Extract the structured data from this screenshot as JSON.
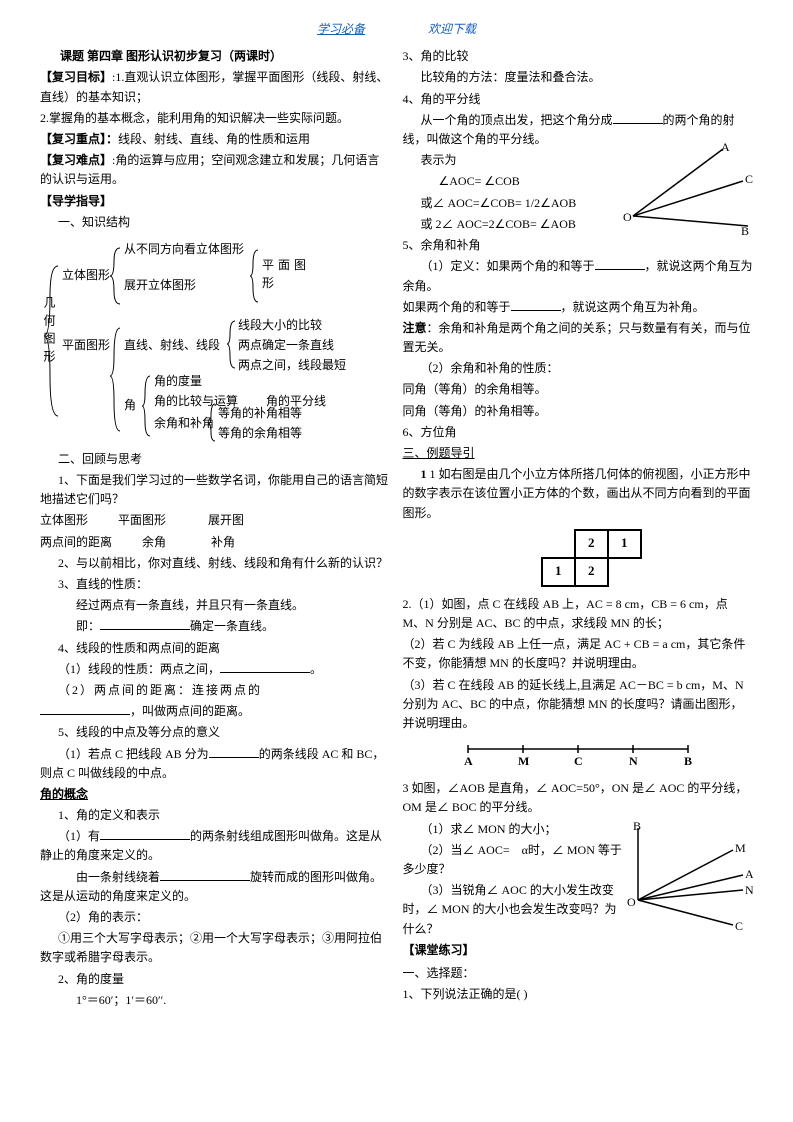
{
  "header": {
    "left": "学习必备",
    "right": "欢迎下载"
  },
  "left": {
    "title": "课题  第四章   图形认识初步复习（两课时）",
    "obj_label": "【复习目标】",
    "obj_text1": ":1.直观认识立体图形，掌握平面图形（线段、射线、直线）的基本知识；",
    "obj_text2": "2.掌握角的基本概念，能利用角的知识解决一些实际问题。",
    "keypoint_label": "【复习重点】：",
    "keypoint_text": "线段、射线、直线、角的性质和运用",
    "diff_label": "【复习难点】",
    "diff_text": ":角的运算与应用；空间观念建立和发展；几何语言的认识与运用。",
    "guide_label": "【导学指导】",
    "section1": "一、知识结构",
    "tree": {
      "root": "几何图形",
      "solid": "立体图形",
      "solid_a": "从不同方向看立体图形",
      "solid_b": "展开立体图形",
      "plane_right": "平面图形",
      "plane": "平面图形",
      "line": "直线、射线、线段",
      "line_a": "线段大小的比较",
      "line_b": "两点确定一条直线",
      "line_c": "两点之间，线段最短",
      "angle": "角",
      "angle_a": "角的度量",
      "angle_b": "角的比较与运算",
      "angle_b_sub": "角的平分线",
      "angle_c": "余角和补角",
      "angle_c_sub1": "等角的补角相等",
      "angle_c_sub2": "等角的余角相等"
    },
    "section2": "二、回顾与思考",
    "q1": "1、下面是我们学习过的一些数学名词，你能用自己的语言简短地描述它们吗？",
    "terms_a": "立体图形          平面图形              展开图",
    "terms_b": "两点间的距离          余角               补角",
    "q2": "2、与以前相比，你对直线、射线、线段和角有什么新的认识？",
    "q3": "3、直线的性质：",
    "q3a": "经过两点有一条直线，并且只有一条直线。",
    "q3b_a": "即：",
    "q3b_b": "确定一条直线。",
    "q4": "4、线段的性质和两点间的距离",
    "q4a": "（1）线段的性质：两点之间，",
    "q4a_end": "。",
    "q4b": "（2）两点间的距离：连接两点的",
    "q4b_end": "，叫做两点间的距离。",
    "q5": "5、线段的中点及等分点的意义",
    "q5a_a": "（1）若点 C 把线段 AB 分为",
    "q5a_b": "的两条线段 AC 和 BC，则点 C 叫做线段的中点。",
    "angle_concept": "角的概念",
    "a1": "1、角的定义和表示",
    "a1a_a": "（1）有",
    "a1a_b": "的两条射线组成图形叫做角。这是从静止的角度来定义的。",
    "a1b_a": "由一条射线绕着",
    "a1b_b": "旋转而成的图形叫做角。这是从运动的角度来定义的。",
    "a2": "（2）角的表示：",
    "a2a": "①用三个大写字母表示；②用一个大写字母表示；③用阿拉伯数字或希腊字母表示。",
    "a3": "2、角的度量",
    "a3a": "1°＝60′；1′＝60′′."
  },
  "right": {
    "r3": "3、角的比较",
    "r3a": "比较角的方法：度量法和叠合法。",
    "r4": "4、角的平分线",
    "r4a_a": "从一个角的顶点出发，把这个角分成",
    "r4a_b": "的两个角的射线，叫做这个角的平分线。",
    "r4b": "表示为",
    "r4c": "∠AOC= ∠COB",
    "r4d": "或∠ AOC=∠COB= 1/2∠AOB",
    "r4e": "或 2∠ AOC=2∠COB= ∠AOB",
    "labels": {
      "A": "A",
      "B": "B",
      "C": "C",
      "O": "O"
    },
    "r5": "5、余角和补角",
    "r5a_a": "（1）定义：如果两个角的和等于",
    "r5a_b": "，就说这两个角互为余角。",
    "r5b_a": "如果两个角的和等于",
    "r5b_b": "，就说这两个角互为补角。",
    "note_label": "注意",
    "note": "：余角和补角是两个角之间的关系；只与数量有有关，而与位置无关。",
    "r5c": "（2）余角和补角的性质：",
    "r5d": "同角（等角）的余角相等。",
    "r5e": "同角（等角）的补角相等。",
    "r6": "6、方位角",
    "ex_label": "三、例题导引",
    "ex1": "1   如右图是由几个小立方体所搭几何体的俯视图，小正方形中的数字表示在该位置小正方体的个数，画出从不同方向看到的平面图形。",
    "grid": {
      "a": "2",
      "b": "1",
      "c": "1",
      "d": "2"
    },
    "ex2": "2.（1）如图，点 C 在线段 AB 上，AC = 8 cm，CB = 6 cm，点 M、N 分别是 AC、BC 的中点，求线段 MN 的长；",
    "ex2b": "（2）若 C 为线段 AB 上任一点，满足 AC + CB = a cm，其它条件不变，你能猜想 MN 的长度吗？并说明理由。",
    "ex2c": "（3）若 C 在线段 AB 的延长线上,且满足 AC－BC = b cm，M、N 分别为 AC、BC 的中点，你能猜想 MN 的长度吗？请画出图形，并说明理由。",
    "seg_labels": {
      "A": "A",
      "M": "M",
      "C": "C",
      "N": "N",
      "B": "B"
    },
    "ex3": "3   如图，∠AOB 是直角，∠ AOC=50°，ON 是∠ AOC 的平分线，OM 是∠ BOC 的平分线。",
    "ex3a": "（1）求∠ MON 的大小；",
    "ex3b": "（2）当∠ AOC=　α时，∠ MON 等于多少度？",
    "ex3c": "（3）当锐角∠ AOC 的大小发生改变时，∠ MON 的大小也会发生改变吗？为什么？",
    "labels2": {
      "O": "O",
      "A": "A",
      "B": "B",
      "M": "M",
      "N": "N",
      "C": "C"
    },
    "practice_label": "【课堂练习】",
    "choice_hdr": "一、选择题：",
    "choice1": "1、下列说法正确的是(  )"
  }
}
